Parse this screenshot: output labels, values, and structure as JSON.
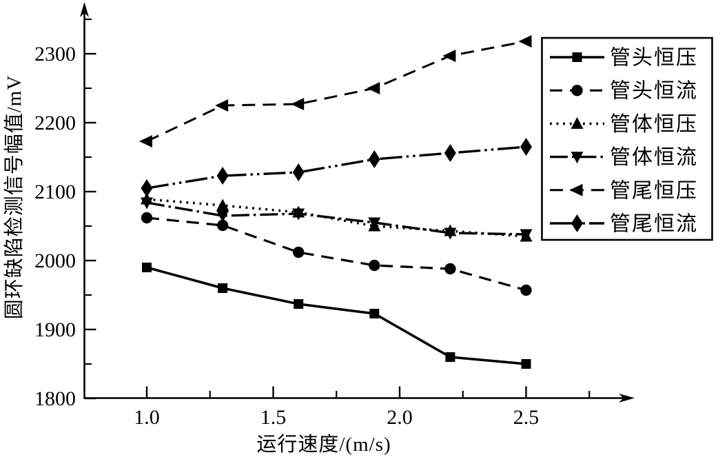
{
  "chart_data": {
    "type": "line",
    "title": "",
    "xlabel": "运行速度/(m/s)",
    "ylabel": "圆环缺陷检测信号幅值/mV",
    "x": [
      1.0,
      1.3,
      1.6,
      1.9,
      2.2,
      2.5
    ],
    "xlim": [
      0.75,
      2.9
    ],
    "ylim": [
      1800,
      2375
    ],
    "x_major_ticks": [
      1.0,
      1.5,
      2.0,
      2.5
    ],
    "x_minor_ticks": [
      1.25,
      1.75,
      2.25,
      2.75
    ],
    "x_tick_labels": [
      "1.0",
      "1.5",
      "2.0",
      "2.5"
    ],
    "y_major_ticks": [
      1800,
      1900,
      2000,
      2100,
      2200,
      2300
    ],
    "y_minor_ticks": [
      1850,
      1950,
      2050,
      2150,
      2250,
      2350
    ],
    "y_tick_labels": [
      "1800",
      "1900",
      "2000",
      "2100",
      "2200",
      "2300"
    ],
    "grid": false,
    "legend_position": "upper-right",
    "colors": {
      "foreground": "#000000",
      "background": "#ffffff"
    },
    "series": [
      {
        "name": "管头恒压",
        "marker": "square",
        "line": "solid",
        "values": [
          1990,
          1960,
          1937,
          1923,
          1860,
          1850
        ]
      },
      {
        "name": "管头恒流",
        "marker": "circle",
        "line": "dashed",
        "values": [
          2062,
          2051,
          2012,
          1993,
          1988,
          1957
        ]
      },
      {
        "name": "管体恒压",
        "marker": "triangle-up",
        "line": "dotted",
        "values": [
          2089,
          2080,
          2070,
          2050,
          2043,
          2035
        ]
      },
      {
        "name": "管体恒流",
        "marker": "triangle-down",
        "line": "dash-dot",
        "values": [
          2084,
          2065,
          2068,
          2055,
          2040,
          2038
        ]
      },
      {
        "name": "管尾恒压",
        "marker": "triangle-left",
        "line": "dashed-long",
        "values": [
          2173,
          2225,
          2227,
          2250,
          2297,
          2318
        ]
      },
      {
        "name": "管尾恒流",
        "marker": "diamond",
        "line": "dash-dot-dot",
        "values": [
          2105,
          2123,
          2128,
          2147,
          2156,
          2165
        ]
      }
    ]
  }
}
